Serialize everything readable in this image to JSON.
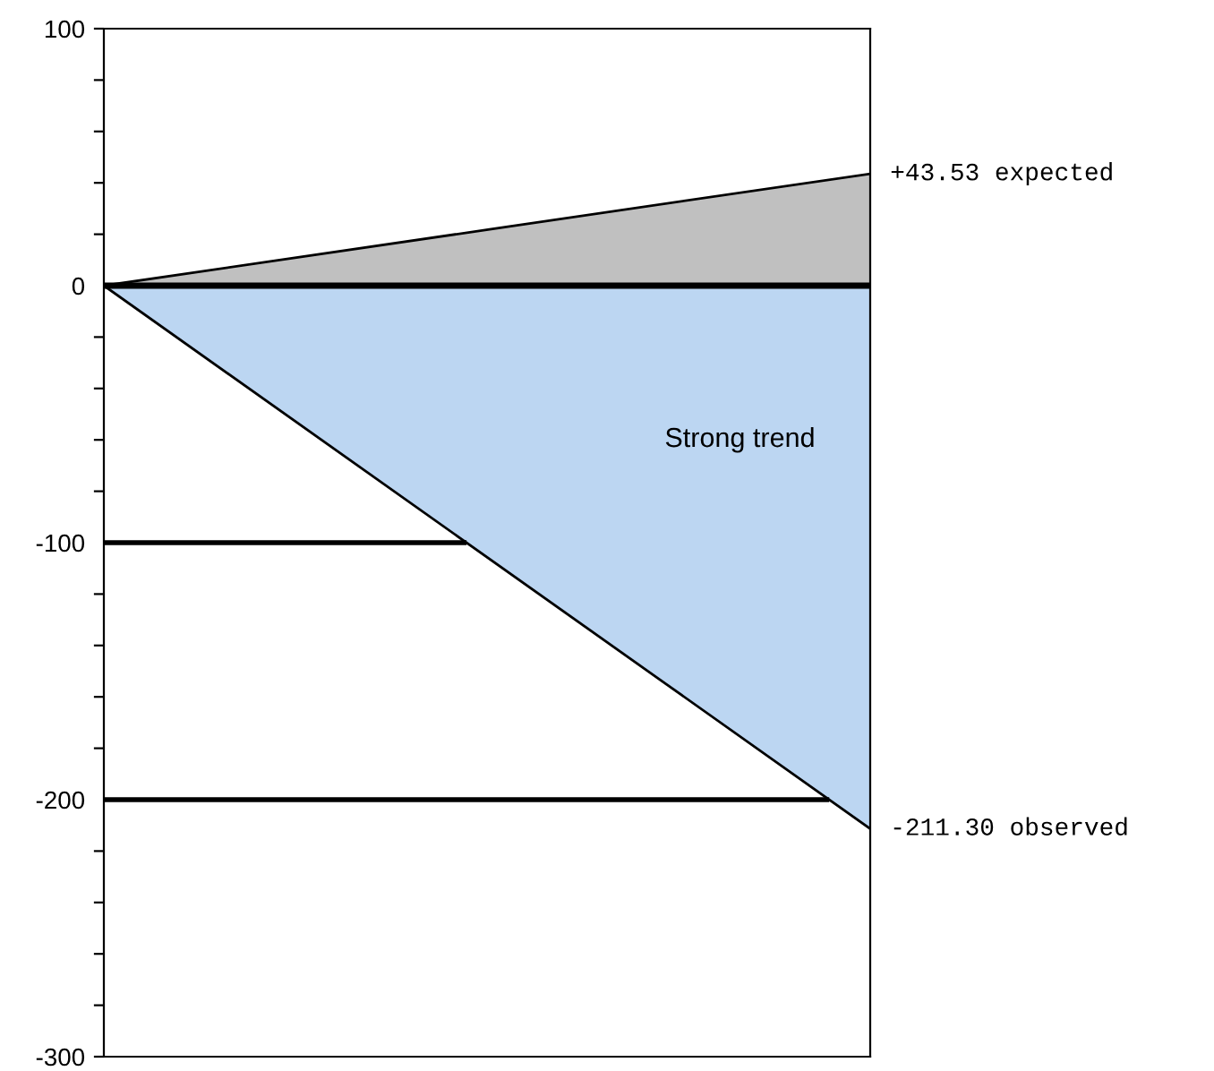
{
  "chart_data": {
    "type": "area",
    "categories": [
      null,
      null
    ],
    "ylim": [
      -300,
      100
    ],
    "yticks": [
      100,
      0,
      -100,
      -200,
      -300
    ],
    "tick_labels": "y",
    "series": [
      {
        "color": "#c0c0c0",
        "values": [
          0,
          43.53
        ],
        "value_labels": [
          null,
          "+43.53 expected"
        ]
      },
      {
        "color": "#bcd6f2",
        "values": [
          0,
          -211.3
        ],
        "value_labels": [
          null,
          "-211.30 observed"
        ]
      }
    ],
    "ref_lines": [
      {
        "axis": "y",
        "value": 0,
        "color": "#000000"
      },
      {
        "axis": "y",
        "value": -100,
        "color": "#000000"
      },
      {
        "axis": "y",
        "value": -200,
        "color": "#000000"
      }
    ],
    "annotations": [
      "Strong trend"
    ]
  }
}
